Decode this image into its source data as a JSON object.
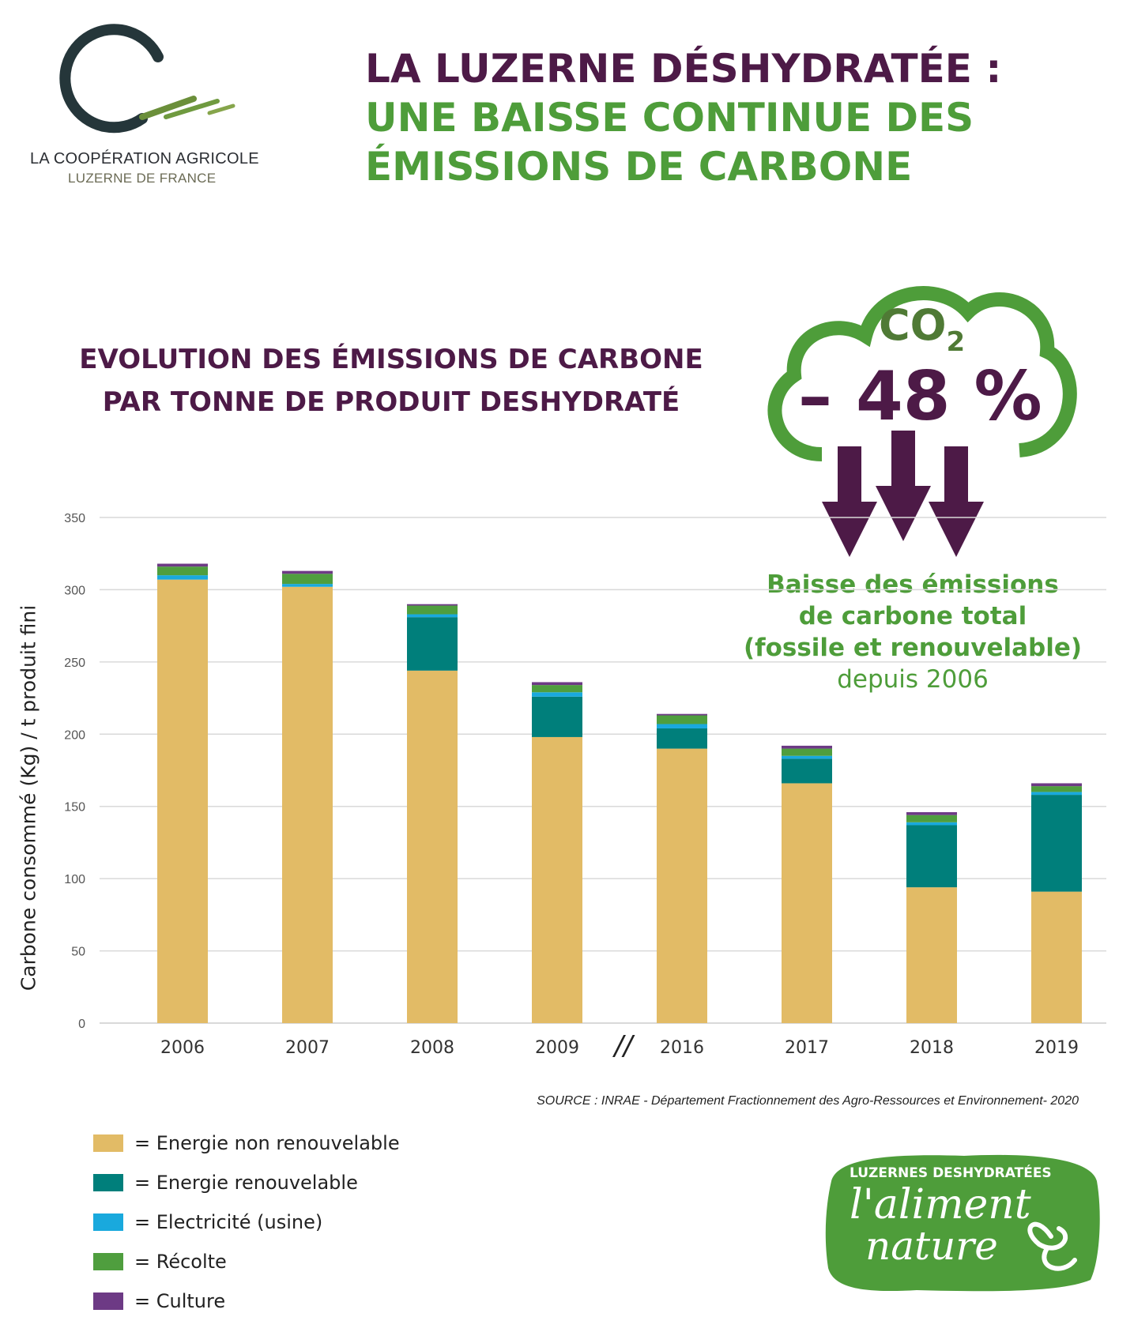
{
  "logo": {
    "line1": "LA COOPÉRATION AGRICOLE",
    "line2": "LUZERNE DE FRANCE",
    "icon": "c-swoosh-logo-icon"
  },
  "headline": {
    "line1": "LA LUZERNE DÉSHYDRATÉE :",
    "line2": "UNE BAISSE CONTINUE DES",
    "line3": "ÉMISSIONS DE CARBONE"
  },
  "subtitle": {
    "line1": "EVOLUTION DES ÉMISSIONS DE CARBONE",
    "line2": "PAR TONNE DE PRODUIT DESHYDRATÉ"
  },
  "highlight": {
    "co2": "CO",
    "co2_sub": "2",
    "percent": "– 48 %",
    "icon": "cloud-down-arrows-icon"
  },
  "callout": {
    "line1": "Baisse des émissions",
    "line2": "de carbone total",
    "line3": "(fossile et renouvelable)",
    "line4": "depuis 2006"
  },
  "source": "SOURCE : INRAE - Département Fractionnement des Agro-Ressources et Environnement- 2020",
  "badge": {
    "top": "LUZERNES DESHYDRATÉES",
    "script1": "l'aliment",
    "script2": "nature"
  },
  "colors": {
    "purple_dark": "#4d1a47",
    "green": "#4e9d3a",
    "non_renouvelable": "#e2bb66",
    "renouvelable": "#007f7b",
    "electricite": "#19a9dd",
    "recolte": "#4f9e3e",
    "culture": "#6d3a85"
  },
  "chart_data": {
    "type": "bar",
    "stacked": true,
    "title": "EVOLUTION DES ÉMISSIONS DE CARBONE PAR TONNE DE PRODUIT DESHYDRATÉ",
    "xlabel": "",
    "ylabel": "Carbone consommé (Kg) / t produit fini",
    "ylim": [
      0,
      350
    ],
    "yticks": [
      0,
      50,
      100,
      150,
      200,
      250,
      300,
      350
    ],
    "grid": true,
    "axis_break_label": "//",
    "axis_break_after": "2009",
    "categories": [
      "2006",
      "2007",
      "2008",
      "2009",
      "2016",
      "2017",
      "2018",
      "2019"
    ],
    "series": [
      {
        "name": "Energie non renouvelable",
        "color": "#e2bb66",
        "values": [
          307,
          302,
          244,
          198,
          190,
          166,
          94,
          91
        ]
      },
      {
        "name": "Energie renouvelable",
        "color": "#007f7b",
        "values": [
          0,
          0,
          37,
          28,
          14,
          17,
          43,
          67
        ]
      },
      {
        "name": "Electricité (usine)",
        "color": "#19a9dd",
        "values": [
          3,
          2,
          2,
          3,
          3,
          2,
          2,
          2
        ]
      },
      {
        "name": "Récolte",
        "color": "#4f9e3e",
        "values": [
          6,
          7,
          6,
          5,
          6,
          5,
          5,
          4
        ]
      },
      {
        "name": "Culture",
        "color": "#6d3a85",
        "values": [
          2,
          2,
          1,
          2,
          1,
          2,
          2,
          2
        ]
      }
    ],
    "legend": {
      "placement": "bottom-left",
      "prefix": "= ",
      "entries": [
        "Energie non renouvelable",
        "Energie renouvelable",
        "Electricité (usine)",
        "Récolte",
        "Culture"
      ]
    }
  }
}
